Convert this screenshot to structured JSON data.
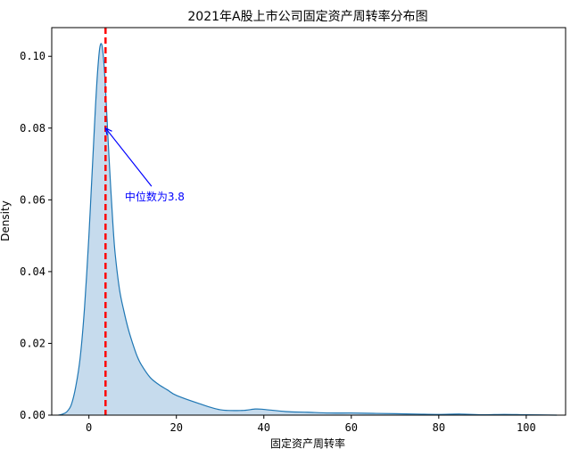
{
  "chart_data": {
    "type": "area",
    "title": "2021年A股上市公司固定资产周转率分布图",
    "xlabel": "固定资产周转率",
    "ylabel": "Density",
    "xlim": [
      -8.5,
      109
    ],
    "ylim": [
      0,
      0.108
    ],
    "x_ticks": [
      0,
      20,
      40,
      60,
      80,
      100
    ],
    "y_ticks": [
      0.0,
      0.02,
      0.04,
      0.06,
      0.08,
      0.1
    ],
    "x_tick_labels": [
      "0",
      "20",
      "40",
      "60",
      "80",
      "100"
    ],
    "y_tick_labels": [
      "0.00",
      "0.02",
      "0.04",
      "0.06",
      "0.08",
      "0.10"
    ],
    "grid": false,
    "series": [
      {
        "x": [
          -7,
          -6,
          -5,
          -4,
          -3,
          -2,
          -1,
          0,
          0.5,
          1,
          1.5,
          2,
          2.5,
          3,
          3.5,
          4,
          4.5,
          5,
          5.5,
          6,
          7,
          8,
          9,
          10,
          11,
          12,
          14,
          16,
          18,
          20,
          25,
          30,
          35,
          38,
          40,
          45,
          50,
          55,
          60,
          65,
          70,
          75,
          80,
          85,
          90,
          95,
          100,
          107
        ],
        "y": [
          0.0,
          0.0003,
          0.001,
          0.003,
          0.008,
          0.016,
          0.03,
          0.05,
          0.062,
          0.074,
          0.086,
          0.096,
          0.1025,
          0.103,
          0.097,
          0.086,
          0.074,
          0.063,
          0.053,
          0.045,
          0.035,
          0.029,
          0.024,
          0.02,
          0.0165,
          0.014,
          0.0105,
          0.0085,
          0.007,
          0.0055,
          0.0033,
          0.0015,
          0.0013,
          0.0017,
          0.0016,
          0.001,
          0.0008,
          0.0006,
          0.0006,
          0.0005,
          0.0004,
          0.0003,
          0.0002,
          0.0003,
          0.0001,
          0.0002,
          0.0001,
          0.0
        ],
        "line_color": "#1f77b4",
        "fill_color": "#c6dbed"
      }
    ],
    "median_line": {
      "x": 3.8,
      "color": "#ff0000",
      "style": "dashed"
    },
    "annotation": {
      "text": "中位数为3.8",
      "point": [
        3.8,
        0.08
      ],
      "text_pos": [
        8.2,
        0.0608
      ],
      "color": "#0000ff"
    }
  }
}
